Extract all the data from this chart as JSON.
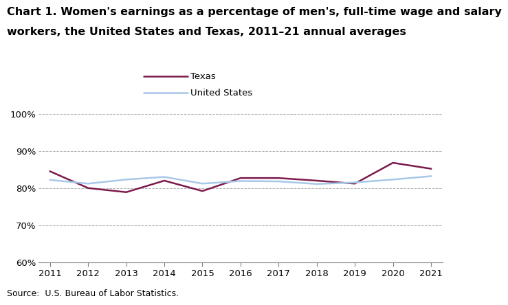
{
  "years": [
    2011,
    2012,
    2013,
    2014,
    2015,
    2016,
    2017,
    2018,
    2019,
    2020,
    2021
  ],
  "texas": [
    84.5,
    80.0,
    78.9,
    82.0,
    79.2,
    82.7,
    82.7,
    82.0,
    81.2,
    86.8,
    85.2
  ],
  "us": [
    82.2,
    81.2,
    82.3,
    83.0,
    81.2,
    81.9,
    81.8,
    81.1,
    81.5,
    82.3,
    83.2
  ],
  "texas_color": "#7b1a4b",
  "us_color": "#a8c8e8",
  "title_line1": "Chart 1. Women's earnings as a percentage of men's, full-time wage and salary",
  "title_line2": "workers, the United States and Texas, 2011–21 annual averages",
  "source": "Source:  U.S. Bureau of Labor Statistics.",
  "legend_texas": "Texas",
  "legend_us": "United States",
  "ylim": [
    60,
    100
  ],
  "yticks": [
    60,
    70,
    80,
    90,
    100
  ],
  "ytick_labels": [
    "60%",
    "70%",
    "80%",
    "90%",
    "100%"
  ],
  "xlim_min": 2011,
  "xlim_max": 2021,
  "title_fontsize": 11.5,
  "label_fontsize": 9.5,
  "legend_fontsize": 9.5,
  "source_fontsize": 9,
  "line_width": 1.8,
  "background_color": "#ffffff",
  "grid_color": "#b0b0b0"
}
